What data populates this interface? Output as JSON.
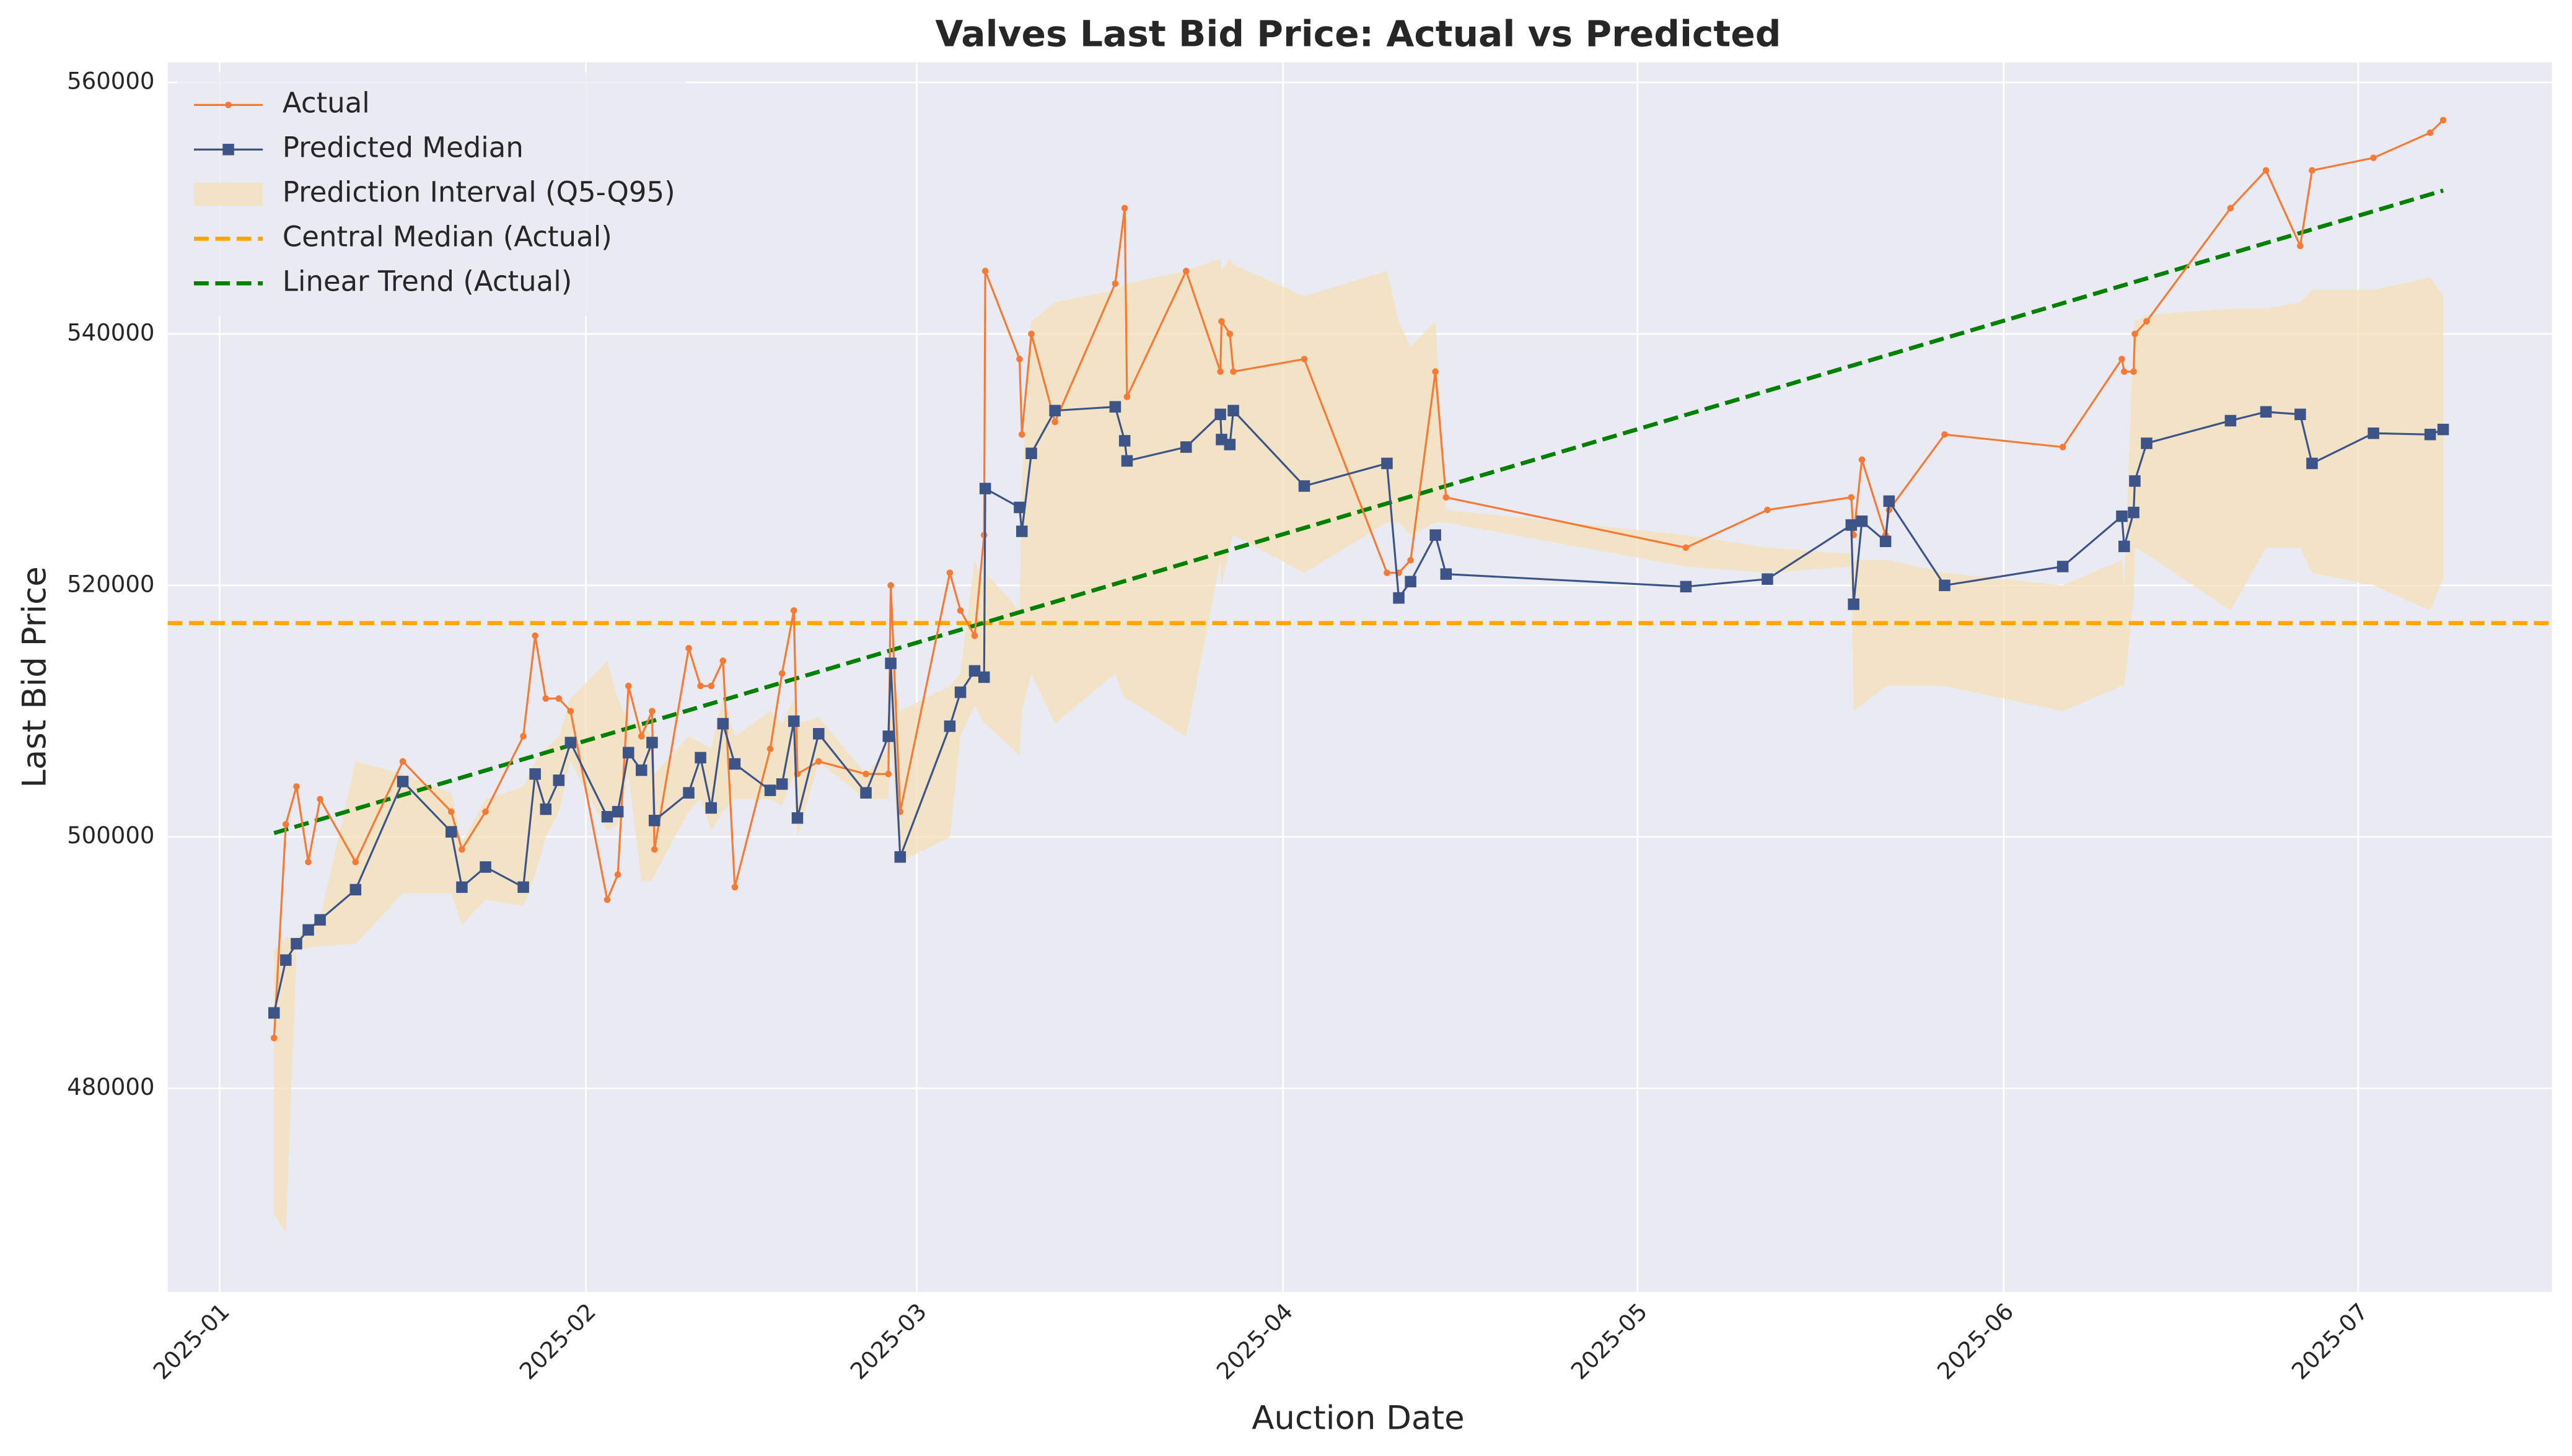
{
  "chart_data": {
    "type": "line",
    "title": "Valves Last Bid Price: Actual vs Predicted",
    "xlabel": "Auction Date",
    "ylabel": "Last Bid Price",
    "x": [
      4.6,
      5.6,
      6.5,
      7.5,
      8.5,
      11.5,
      15.5,
      19.6,
      20.5,
      22.5,
      25.7,
      26.7,
      27.6,
      28.7,
      29.7,
      32.8,
      33.7,
      34.6,
      35.7,
      36.6,
      36.8,
      39.7,
      40.7,
      41.6,
      42.6,
      43.6,
      46.6,
      47.6,
      48.6,
      48.9,
      50.7,
      54.7,
      56.6,
      56.8,
      57.6,
      61.8,
      62.7,
      63.9,
      64.7,
      64.8,
      67.7,
      67.9,
      68.7,
      70.7,
      75.8,
      76.6,
      76.8,
      81.8,
      84.7,
      84.8,
      85.5,
      85.8,
      91.8,
      98.8,
      99.8,
      100.8,
      102.9,
      103.8,
      124.1,
      131.0,
      138.1,
      138.3,
      139.0,
      141.0,
      141.3,
      146.0,
      156.0,
      161.0,
      161.2,
      162.0,
      162.1,
      163.1,
      170.2,
      173.2,
      176.1,
      177.1,
      182.3,
      187.1,
      188.2
    ],
    "series": [
      {
        "name": "Actual",
        "color": "#f57a35",
        "marker": "circle",
        "values": [
          484000,
          501000,
          504000,
          498000,
          503000,
          498000,
          506000,
          502000,
          499000,
          502000,
          508000,
          516000,
          511000,
          511000,
          510000,
          495000,
          497000,
          512000,
          508000,
          510000,
          499000,
          515000,
          512000,
          512000,
          514000,
          496000,
          507000,
          513000,
          518000,
          505000,
          506000,
          505000,
          505000,
          520000,
          502000,
          521000,
          518000,
          516000,
          524000,
          545000,
          538000,
          532000,
          540000,
          533000,
          544000,
          550000,
          535000,
          545000,
          537000,
          541000,
          540000,
          537000,
          538000,
          521000,
          521000,
          522000,
          537000,
          527000,
          523000,
          526000,
          527000,
          524000,
          530000,
          524000,
          526000,
          532000,
          531000,
          538000,
          537000,
          537000,
          540000,
          541000,
          550000,
          553000,
          547000,
          553000,
          554000,
          556000,
          557000
        ]
      },
      {
        "name": "Predicted Median",
        "color": "#3d5488",
        "marker": "square",
        "values": [
          486000,
          490200,
          491500,
          492600,
          493400,
          495800,
          504400,
          500400,
          496000,
          497600,
          496000,
          505000,
          502200,
          504500,
          507500,
          501600,
          502000,
          506700,
          505300,
          507500,
          501300,
          503500,
          506300,
          502300,
          509000,
          505800,
          503700,
          504200,
          509200,
          501500,
          508200,
          503500,
          508000,
          513800,
          498400,
          508800,
          511500,
          513200,
          512700,
          527700,
          526200,
          524300,
          530500,
          533900,
          534200,
          531500,
          529900,
          531000,
          533600,
          531600,
          531200,
          533900,
          527900,
          529700,
          519000,
          520300,
          524000,
          520900,
          519900,
          520500,
          524800,
          518500,
          525100,
          523500,
          526700,
          520000,
          521500,
          525500,
          523100,
          525800,
          528300,
          531300,
          533100,
          533800,
          533600,
          529700,
          532100,
          532000,
          532400
        ]
      }
    ],
    "band": {
      "name": "Prediction Interval (Q5-Q95)",
      "color": "#f5deb3",
      "lower": [
        470000,
        468500,
        491000,
        491200,
        491300,
        491500,
        495500,
        495500,
        493000,
        495000,
        494500,
        497000,
        500000,
        502000,
        506000,
        500500,
        501000,
        505000,
        496500,
        496500,
        497000,
        502000,
        503000,
        500500,
        502000,
        503000,
        503000,
        502500,
        505000,
        500000,
        506000,
        503000,
        503000,
        507500,
        498000,
        500000,
        508000,
        510500,
        509000,
        509000,
        506500,
        510000,
        513000,
        509000,
        513000,
        511000,
        511000,
        508000,
        522000,
        520000,
        523000,
        524000,
        521000,
        525000,
        525000,
        524000,
        525000,
        525000,
        521500,
        521000,
        521500,
        510000,
        510500,
        512000,
        512000,
        512000,
        510000,
        512000,
        512000,
        519000,
        523000,
        522500,
        518000,
        523000,
        523000,
        521000,
        520000,
        518000,
        520500
      ],
      "upper": [
        491000,
        492000,
        492000,
        492800,
        493500,
        506000,
        505000,
        503500,
        499500,
        503000,
        504000,
        506000,
        507000,
        508000,
        511000,
        514000,
        511000,
        509000,
        509000,
        508000,
        505000,
        508000,
        507500,
        507000,
        511000,
        508000,
        510000,
        509000,
        511000,
        509000,
        509500,
        505000,
        507000,
        514000,
        510000,
        512000,
        513000,
        522000,
        520000,
        521000,
        518000,
        528000,
        541000,
        542500,
        543500,
        544000,
        544000,
        545000,
        546000,
        545000,
        546000,
        545500,
        543000,
        545000,
        541000,
        539000,
        541000,
        526000,
        524000,
        523000,
        522500,
        522000,
        522000,
        522000,
        522000,
        521000,
        520000,
        522000,
        520000,
        540000,
        541000,
        541500,
        542000,
        542000,
        542500,
        543500,
        543500,
        544500,
        543000
      ]
    },
    "central_median": {
      "name": "Central Median (Actual)",
      "color": "#ffa500",
      "value": 517000
    },
    "trend": {
      "name": "Linear Trend (Actual)",
      "color": "#008000",
      "x": [
        4.6,
        188.2
      ],
      "values": [
        500300,
        551400
      ]
    },
    "xlim": [
      -4.4,
      197.4
    ],
    "ylim": [
      463800,
      561600
    ],
    "xticks": [
      {
        "value": 0,
        "label": "2025-01"
      },
      {
        "value": 31,
        "label": "2025-02"
      },
      {
        "value": 59,
        "label": "2025-03"
      },
      {
        "value": 90,
        "label": "2025-04"
      },
      {
        "value": 120,
        "label": "2025-05"
      },
      {
        "value": 151,
        "label": "2025-06"
      },
      {
        "value": 181,
        "label": "2025-07"
      }
    ],
    "yticks": [
      480000,
      500000,
      520000,
      540000,
      560000
    ],
    "grid": true,
    "legend": "upper left"
  }
}
